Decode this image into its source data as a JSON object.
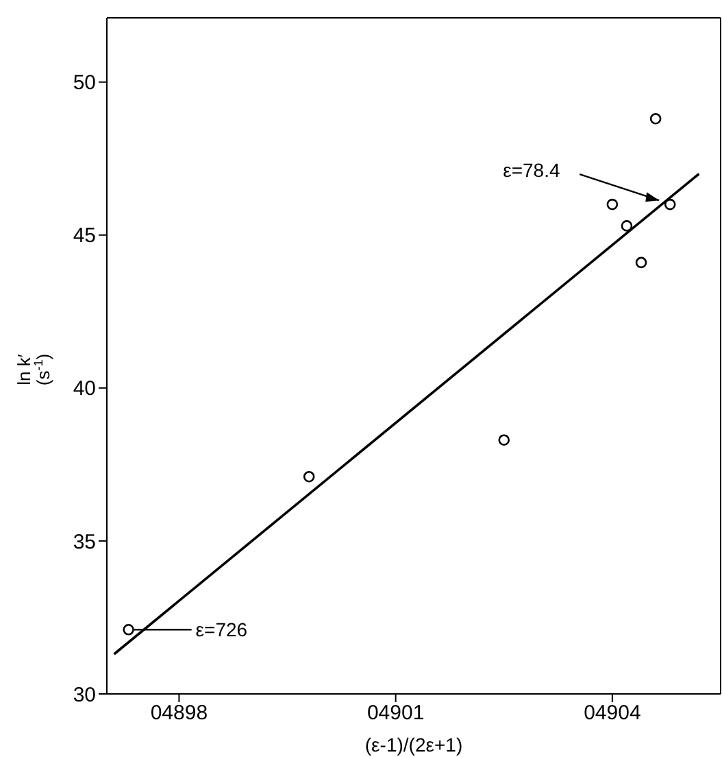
{
  "chart_data": {
    "type": "scatter",
    "xlabel": "(ε-1)/(2ε+1)",
    "ylabel": "ln k′\n(s$^{-1}$)",
    "xlim": [
      4897,
      4905.5
    ],
    "ylim": [
      30,
      52.1
    ],
    "xticks": [
      {
        "value": 4898,
        "label": "04898"
      },
      {
        "value": 4901,
        "label": "04901"
      },
      {
        "value": 4904,
        "label": "04904"
      }
    ],
    "yticks": [
      30,
      35,
      40,
      45,
      50
    ],
    "marker": "circle",
    "series": [
      {
        "color": "#000000",
        "x": [
          4897.3,
          4899.8,
          4902.5,
          4904.0,
          4904.2,
          4904.4,
          4904.6,
          4904.8
        ],
        "values": [
          32.1,
          37.1,
          38.3,
          46.0,
          45.3,
          44.1,
          48.8,
          46.0
        ]
      },
      {
        "type": "line",
        "color": "#000000",
        "marker": "none",
        "x": [
          4897.1,
          4905.2
        ],
        "values": [
          31.3,
          47.0
        ]
      }
    ],
    "annotations": [
      {
        "text": "ε=78.4",
        "x": 4904.8,
        "y": 46.0
      },
      "ε=726"
    ]
  }
}
